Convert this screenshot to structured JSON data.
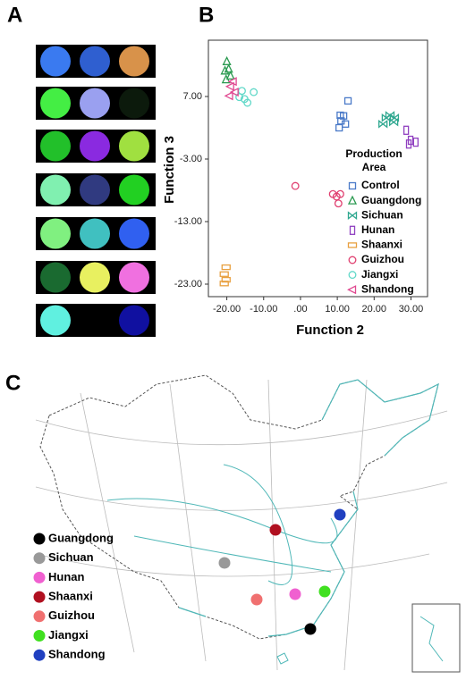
{
  "panel_labels": [
    "A",
    "B",
    "C"
  ],
  "swatches": [
    [
      "#3a7af0",
      "#2f5fd0",
      "#d8924a"
    ],
    [
      "#44ee44",
      "#9aa0f0",
      "#0c1a0c"
    ],
    [
      "#22c02a",
      "#8a2ae0",
      "#a0e040"
    ],
    [
      "#80f0b0",
      "#303a80",
      "#22d022"
    ],
    [
      "#80f080",
      "#40c0c0",
      "#3060f0"
    ],
    [
      "#1a6a30",
      "#e8f060",
      "#f070e0"
    ],
    [
      "#60f0e0",
      "#000000",
      "#1010a0"
    ]
  ],
  "chart_data": {
    "type": "scatter",
    "xlabel": "Function 2",
    "ylabel": "Function 3",
    "legend_title": [
      "Production",
      "Area"
    ],
    "xlim": [
      -25,
      34.5
    ],
    "ylim": [
      -25,
      16
    ],
    "xticks": [
      {
        "value": -20,
        "label": "-20.00"
      },
      {
        "value": -10,
        "label": "-10.00"
      },
      {
        "value": 0,
        "label": ".00"
      },
      {
        "value": 10,
        "label": "10.00"
      },
      {
        "value": 20,
        "label": "20.00"
      },
      {
        "value": 30,
        "label": "30.00"
      }
    ],
    "yticks": [
      {
        "value": 7,
        "label": "7.00"
      },
      {
        "value": -3,
        "label": "-3.00"
      },
      {
        "value": -13,
        "label": "-13.00"
      },
      {
        "value": -23,
        "label": "-23.00"
      }
    ],
    "series": [
      {
        "name": "Control",
        "color": "#4a7ac8",
        "marker": "square",
        "x": [
          12.9,
          10.8,
          11.0,
          10.5,
          12.2,
          11.7
        ],
        "values": [
          6.3,
          4.0,
          3.1,
          2.0,
          2.6,
          3.9
        ]
      },
      {
        "name": "Guangdong",
        "color": "#2a9a50",
        "marker": "triangle",
        "x": [
          -20,
          -20.5,
          -19.5,
          -20.2,
          -19
        ],
        "values": [
          12.6,
          11.1,
          11.4,
          9.7,
          10.3
        ]
      },
      {
        "name": "Sichuan",
        "color": "#30a890",
        "marker": "bowtie",
        "x": [
          23.3,
          25.3,
          24.3,
          22.4,
          25.5
        ],
        "values": [
          3.6,
          2.9,
          4.0,
          2.6,
          3.6
        ]
      },
      {
        "name": "Hunan",
        "color": "#9040c0",
        "marker": "tall",
        "x": [
          28.7,
          29.9,
          31.3,
          29.4
        ],
        "values": [
          1.6,
          0.0,
          -0.3,
          -0.6
        ]
      },
      {
        "name": "Shaanxi",
        "color": "#e8a040",
        "marker": "wide",
        "x": [
          -20.2,
          -20.7,
          -20.2,
          -20.7
        ],
        "values": [
          -20.3,
          -21.4,
          -22.3,
          -22.9
        ]
      },
      {
        "name": "Guizhou",
        "color": "#e04070",
        "marker": "circle",
        "x": [
          -1.4,
          8.8,
          9.8,
          10.8,
          10.3
        ],
        "values": [
          -7.3,
          -8.6,
          -9.0,
          -8.6,
          -10.1
        ]
      },
      {
        "name": "Jiangxi",
        "color": "#60d8c8",
        "marker": "circle",
        "x": [
          -15.9,
          -15.2,
          -12.7,
          -14.4,
          -16.6
        ],
        "values": [
          7.9,
          6.6,
          7.7,
          6.0,
          6.9
        ]
      },
      {
        "name": "Shandong",
        "color": "#e04890",
        "marker": "left",
        "x": [
          -19,
          -17.8,
          -18.3,
          -19.3
        ],
        "values": [
          8.6,
          7.7,
          9.4,
          7.1
        ]
      }
    ]
  },
  "map": {
    "legend": [
      {
        "name": "Guangdong",
        "color": "#000000"
      },
      {
        "name": "Sichuan",
        "color": "#999999"
      },
      {
        "name": "Hunan",
        "color": "#f060d0"
      },
      {
        "name": "Shaanxi",
        "color": "#b01020"
      },
      {
        "name": "Guizhou",
        "color": "#f07070"
      },
      {
        "name": "Jiangxi",
        "color": "#40e020"
      },
      {
        "name": "Shandong",
        "color": "#2040c0"
      }
    ]
  }
}
